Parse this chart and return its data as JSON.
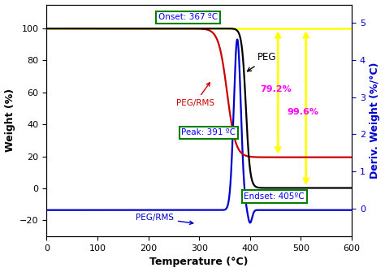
{
  "xlabel": "Temperature (°C)",
  "ylabel_left": "Weight (%)",
  "ylabel_right": "Deriv. Weight (%/°C)",
  "xlim": [
    0,
    600
  ],
  "ylim_left": [
    -30,
    115
  ],
  "ylim_right": [
    -0.75,
    5.5
  ],
  "x_ticks": [
    0,
    100,
    200,
    300,
    400,
    500,
    600
  ],
  "y_ticks_left": [
    -20,
    0,
    20,
    40,
    60,
    80,
    100
  ],
  "y_ticks_right": [
    0,
    1,
    2,
    3,
    4,
    5
  ],
  "peg_color": "#000000",
  "peg_rms_weight_color": "#cc0000",
  "peg_rms_deriv_color": "#0000cc",
  "annotation_onset": "Onset: 367 ºC",
  "annotation_peak": "Peak: 391 ºC",
  "annotation_endset": "Endset: 405ºC",
  "annotation_peg_label": "PEG",
  "annotation_pegRMS_weight": "PEG/RMS",
  "annotation_pegRMS_deriv": "PEG/RMS",
  "annotation_792": "79.2%",
  "annotation_996": "99.6%",
  "yellow_color": "yellow",
  "magenta_color": "magenta",
  "green_color": "green",
  "background_color": "white"
}
